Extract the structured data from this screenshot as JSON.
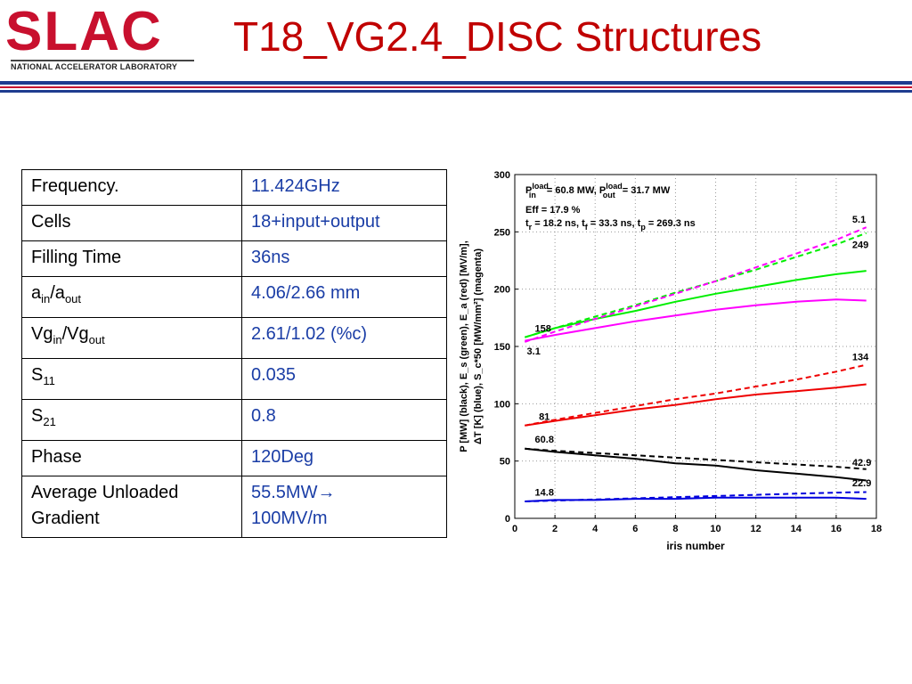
{
  "header": {
    "logo_text": "SLAC",
    "logo_subtitle": "NATIONAL ACCELERATOR LABORATORY",
    "title": "T18_VG2.4_DISC Structures"
  },
  "table": {
    "rows": [
      {
        "key": "Frequency.",
        "value": "11.424GHz"
      },
      {
        "key": "Cells",
        "value": "18+input+output"
      },
      {
        "key": "Filling Time",
        "value": "36ns"
      },
      {
        "key_main": "a",
        "key_sub1": "in",
        "key_mid": "/a",
        "key_sub2": "out",
        "value": "4.06/2.66 mm"
      },
      {
        "key_main": "Vg",
        "key_sub1": "in",
        "key_mid": "/Vg",
        "key_sub2": "out",
        "value": "2.61/1.02 (%c)"
      },
      {
        "key_main": "S",
        "key_sub1": "11",
        "value": "0.035"
      },
      {
        "key_main": "S",
        "key_sub1": "21",
        "value": "0.8"
      },
      {
        "key": "Phase",
        "value": "120Deg"
      },
      {
        "key": "Average Unloaded Gradient",
        "value_line1": "55.5MW→",
        "value_line2": "100MV/m"
      }
    ]
  },
  "chart_data": {
    "type": "line",
    "xlabel": "iris number",
    "ylabel_line1": "P [MW] (black), E_s (green), E_a (red) [MV/m],",
    "ylabel_line2": "ΔT [K] (blue), S_c*50 [MW/mm²] (magenta)",
    "xlim": [
      0,
      18
    ],
    "ylim": [
      0,
      300
    ],
    "xticks": [
      0,
      2,
      4,
      6,
      8,
      10,
      12,
      14,
      16,
      18
    ],
    "yticks": [
      0,
      50,
      100,
      150,
      200,
      250,
      300
    ],
    "grid": "dotted",
    "annotations_text": {
      "line1_a": "P",
      "line1_a_sup": "load",
      "line1_a_sub": "in",
      "line1_b": "= 60.8 MW, P",
      "line1_b_sup": "load",
      "line1_b_sub": "out",
      "line1_c": "= 31.7 MW",
      "line2": "Eff = 17.9 %",
      "line3_a": "t",
      "line3_a_sub": "r",
      "line3_b": "= 18.2 ns, t",
      "line3_b_sub": "f",
      "line3_c": "= 33.3 ns, t",
      "line3_c_sub": "p",
      "line3_d": "= 269.3 ns"
    },
    "point_labels": [
      {
        "text": "158",
        "x": 1.0,
        "y": 163
      },
      {
        "text": "3.1",
        "x": 0.6,
        "y": 143
      },
      {
        "text": "81",
        "x": 1.2,
        "y": 86
      },
      {
        "text": "60.8",
        "x": 1.0,
        "y": 66
      },
      {
        "text": "14.8",
        "x": 1.0,
        "y": 20
      },
      {
        "text": "5.1",
        "x": 16.8,
        "y": 258
      },
      {
        "text": "249",
        "x": 16.8,
        "y": 236
      },
      {
        "text": "134",
        "x": 16.8,
        "y": 138
      },
      {
        "text": "42.9",
        "x": 16.8,
        "y": 46
      },
      {
        "text": "22.9",
        "x": 16.8,
        "y": 28
      }
    ],
    "series": [
      {
        "color": "#00ee00",
        "dash": false,
        "x": [
          0.5,
          2,
          4,
          6,
          8,
          10,
          12,
          14,
          16,
          17.5
        ],
        "y": [
          158,
          166,
          174,
          181,
          189,
          196,
          202,
          208,
          213,
          216
        ]
      },
      {
        "color": "#00ee00",
        "dash": true,
        "x": [
          0.5,
          2,
          4,
          6,
          8,
          10,
          12,
          14,
          16,
          17.5
        ],
        "y": [
          158,
          166,
          176,
          186,
          197,
          207,
          217,
          228,
          239,
          249
        ]
      },
      {
        "color": "#ff00ff",
        "dash": false,
        "x": [
          0.5,
          2,
          4,
          6,
          8,
          10,
          12,
          14,
          16,
          17.5
        ],
        "y": [
          155,
          160,
          166,
          172,
          177,
          182,
          186,
          189,
          191,
          190
        ]
      },
      {
        "color": "#ff00ff",
        "dash": true,
        "x": [
          0.5,
          2,
          4,
          6,
          8,
          10,
          12,
          14,
          16,
          17.5
        ],
        "y": [
          154,
          163,
          174,
          185,
          196,
          207,
          219,
          231,
          243,
          254
        ]
      },
      {
        "color": "#ee0000",
        "dash": false,
        "x": [
          0.5,
          2,
          4,
          6,
          8,
          10,
          12,
          14,
          16,
          17.5
        ],
        "y": [
          81,
          85,
          90,
          95,
          99,
          104,
          108,
          111,
          114,
          117
        ]
      },
      {
        "color": "#ee0000",
        "dash": true,
        "x": [
          0.5,
          2,
          4,
          6,
          8,
          10,
          12,
          14,
          16,
          17.5
        ],
        "y": [
          81,
          86,
          92,
          98,
          104,
          109,
          115,
          121,
          128,
          134
        ]
      },
      {
        "color": "#000000",
        "dash": false,
        "x": [
          0.5,
          2,
          4,
          6,
          8,
          10,
          12,
          14,
          16,
          17.5
        ],
        "y": [
          60.8,
          58,
          55,
          52,
          48,
          46,
          42,
          39,
          36,
          33
        ]
      },
      {
        "color": "#000000",
        "dash": true,
        "x": [
          0.5,
          2,
          4,
          6,
          8,
          10,
          12,
          14,
          16,
          17.5
        ],
        "y": [
          60.8,
          59,
          57,
          55,
          53,
          51,
          49,
          47,
          45,
          42.9
        ]
      },
      {
        "color": "#0000dd",
        "dash": false,
        "x": [
          0.5,
          2,
          4,
          6,
          8,
          10,
          12,
          14,
          16,
          17.5
        ],
        "y": [
          14.8,
          16,
          16,
          17,
          17,
          18,
          18,
          18,
          18,
          17
        ]
      },
      {
        "color": "#0000dd",
        "dash": true,
        "x": [
          0.5,
          2,
          4,
          6,
          8,
          10,
          12,
          14,
          16,
          17.5
        ],
        "y": [
          14.8,
          15.5,
          16.5,
          17.5,
          18.5,
          19.5,
          20.5,
          21.5,
          22.5,
          22.9
        ]
      }
    ]
  }
}
